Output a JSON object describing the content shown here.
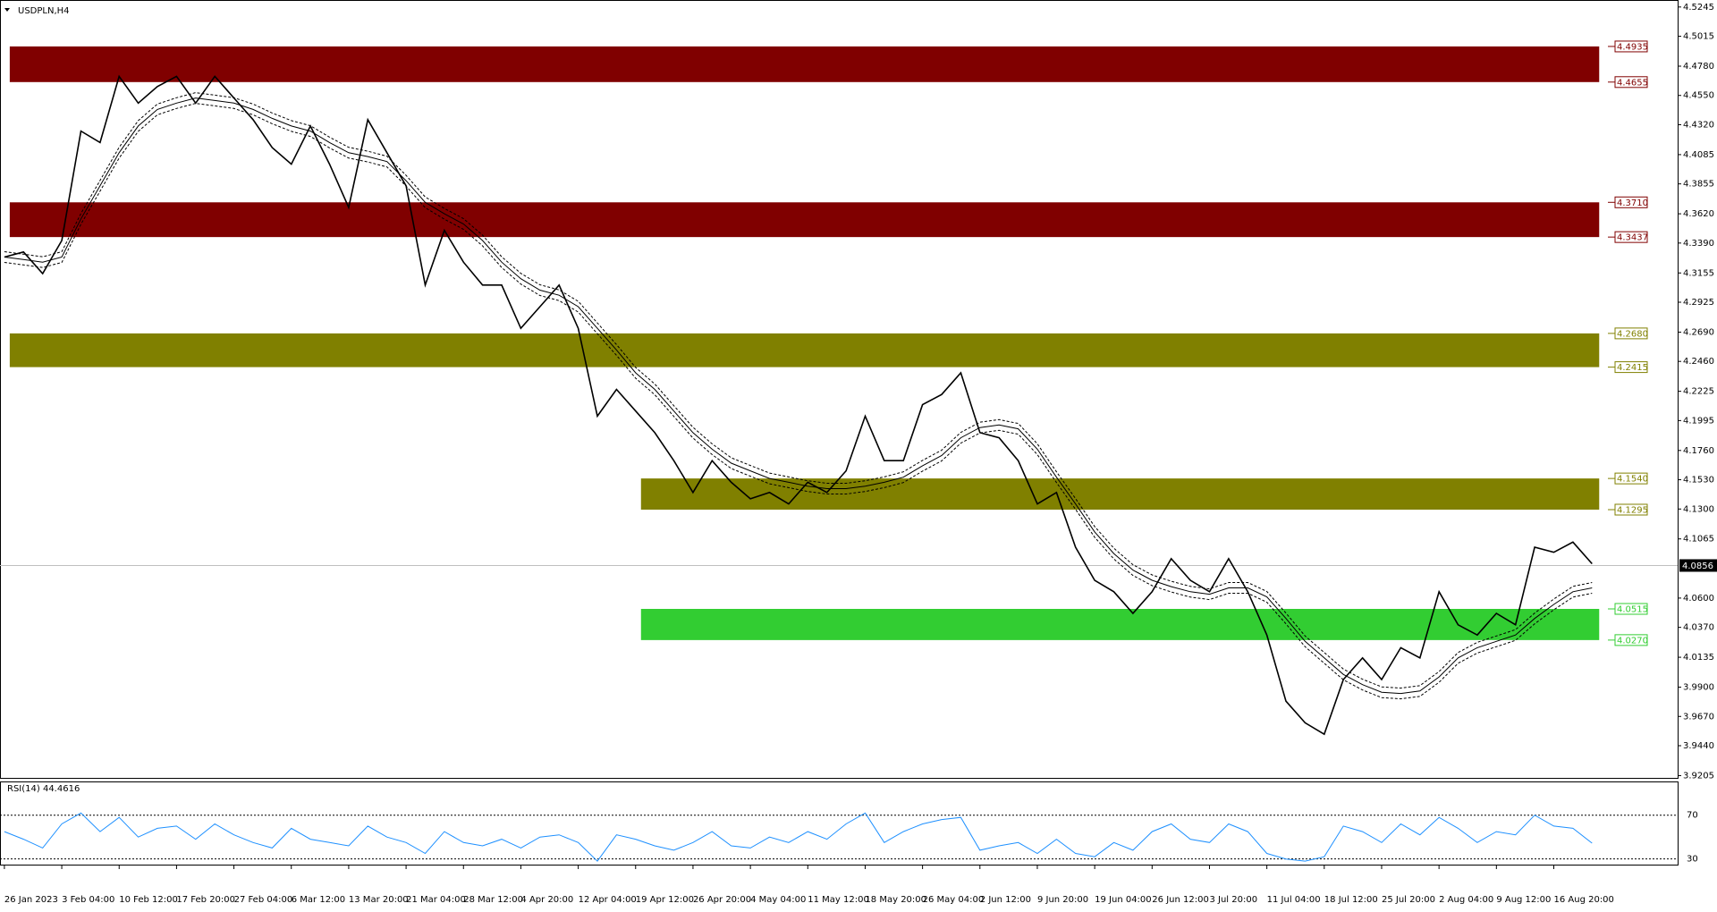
{
  "chart_data": {
    "type": "line",
    "title": "USDPLN,H4",
    "categories": [
      "26 Jan 2023",
      null,
      null,
      "3 Feb 04:00",
      null,
      null,
      "10 Feb 12:00",
      null,
      null,
      "17 Feb 20:00",
      null,
      null,
      "27 Feb 04:00",
      null,
      null,
      "6 Mar 12:00",
      null,
      null,
      "13 Mar 20:00",
      null,
      null,
      "21 Mar 04:00",
      null,
      null,
      "28 Mar 12:00",
      null,
      null,
      "4 Apr 20:00",
      null,
      null,
      "12 Apr 04:00",
      null,
      null,
      "19 Apr 12:00",
      null,
      null,
      "26 Apr 20:00",
      null,
      null,
      "4 May 04:00",
      null,
      null,
      "11 May 12:00",
      null,
      null,
      "18 May 20:00",
      null,
      null,
      "26 May 04:00",
      null,
      null,
      "2 Jun 12:00",
      null,
      null,
      "9 Jun 20:00",
      null,
      null,
      "19 Jun 04:00",
      null,
      null,
      "26 Jun 12:00",
      null,
      null,
      "3 Jul 20:00",
      null,
      null,
      "11 Jul 04:00",
      null,
      null,
      "18 Jul 12:00",
      null,
      null,
      "25 Jul 20:00",
      null,
      null,
      "2 Aug 04:00",
      null,
      null,
      "9 Aug 12:00",
      null,
      null,
      "16 Aug 20:00",
      null,
      null
    ],
    "series": [
      {
        "name": "USDPLN",
        "color": "#000000",
        "values": [
          4.328,
          4.332,
          4.315,
          4.341,
          4.427,
          4.418,
          4.47,
          4.449,
          4.462,
          4.47,
          4.449,
          4.47,
          4.453,
          4.436,
          4.414,
          4.401,
          4.431,
          4.401,
          4.367,
          4.436,
          4.41,
          4.384,
          4.306,
          4.349,
          4.324,
          4.306,
          4.306,
          4.272,
          4.289,
          4.306,
          4.272,
          4.203,
          4.224,
          4.207,
          4.19,
          4.168,
          4.143,
          4.168,
          4.151,
          4.138,
          4.143,
          4.134,
          4.151,
          4.143,
          4.16,
          4.203,
          4.168,
          4.168,
          4.212,
          4.22,
          4.237,
          4.19,
          4.186,
          4.168,
          4.134,
          4.143,
          4.1,
          4.074,
          4.065,
          4.048,
          4.065,
          4.091,
          4.074,
          4.065,
          4.091,
          4.065,
          4.031,
          3.979,
          3.962,
          3.953,
          3.996,
          4.013,
          3.996,
          4.021,
          4.013,
          4.065,
          4.039,
          4.031,
          4.048,
          4.039,
          4.1,
          4.096,
          4.104,
          4.087
        ]
      },
      {
        "name": "MA",
        "color": "#000000",
        "values": [
          4.328,
          4.326,
          4.324,
          4.328,
          4.358,
          4.384,
          4.41,
          4.431,
          4.444,
          4.449,
          4.453,
          4.451,
          4.449,
          4.444,
          4.437,
          4.431,
          4.427,
          4.418,
          4.41,
          4.407,
          4.403,
          4.388,
          4.371,
          4.362,
          4.354,
          4.341,
          4.324,
          4.311,
          4.302,
          4.298,
          4.289,
          4.272,
          4.255,
          4.237,
          4.224,
          4.207,
          4.19,
          4.177,
          4.166,
          4.16,
          4.154,
          4.151,
          4.148,
          4.146,
          4.146,
          4.148,
          4.151,
          4.155,
          4.164,
          4.172,
          4.186,
          4.194,
          4.196,
          4.193,
          4.177,
          4.155,
          4.134,
          4.112,
          4.095,
          4.082,
          4.074,
          4.069,
          4.065,
          4.063,
          4.068,
          4.068,
          4.061,
          4.044,
          4.026,
          4.013,
          4.0,
          3.992,
          3.986,
          3.985,
          3.987,
          3.998,
          4.013,
          4.021,
          4.026,
          4.031,
          4.044,
          4.055,
          4.065,
          4.068
        ]
      }
    ],
    "ylim": [
      3.918,
      4.53
    ],
    "yticks": [
      4.5245,
      4.5015,
      {
        "value": 4.478,
        "label": "4.4780"
      },
      {
        "value": 4.455,
        "label": "4.4550"
      },
      {
        "value": 4.432,
        "label": "4.4320"
      },
      4.4085,
      4.3855,
      {
        "value": 4.362,
        "label": "4.3620"
      },
      {
        "value": 4.339,
        "label": "4.3390"
      },
      4.3155,
      4.2925,
      {
        "value": 4.269,
        "label": "4.2690"
      },
      {
        "value": 4.246,
        "label": "4.2460"
      },
      4.2225,
      4.1995,
      {
        "value": 4.176,
        "label": "4.1760"
      },
      {
        "value": 4.153,
        "label": "4.1530"
      },
      {
        "value": 4.13,
        "label": "4.1300"
      },
      4.1065,
      {
        "value": 4.06,
        "label": "4.0600"
      },
      {
        "value": 4.037,
        "label": "4.0370"
      },
      4.0135,
      {
        "value": 3.99,
        "label": "3.9900"
      },
      {
        "value": 3.967,
        "label": "3.9670"
      },
      {
        "value": 3.944,
        "label": "3.9440"
      },
      3.9205
    ],
    "last_price": 4.0856,
    "zones": [
      {
        "color": "#800000",
        "start_index": 0,
        "values": [
          4.4935,
          4.4655
        ],
        "value_labels": [
          "4.4935",
          "4.4655"
        ]
      },
      {
        "color": "#800000",
        "start_index": 0,
        "values": [
          4.371,
          4.3437
        ],
        "value_labels": [
          "4.3710",
          "4.3437"
        ]
      },
      {
        "color": "#808000",
        "start_index": 0,
        "values": [
          4.268,
          4.2415
        ],
        "value_labels": [
          "4.2680",
          "4.2415"
        ]
      },
      {
        "color": "#808000",
        "start_index": 33,
        "values": [
          4.154,
          4.1295
        ],
        "value_labels": [
          "4.1540",
          "4.1295"
        ]
      },
      {
        "color": "#32cd32",
        "start_index": 33,
        "values": [
          4.0515,
          4.027
        ],
        "value_labels": [
          "4.0515",
          "4.0270"
        ]
      }
    ],
    "rsi": {
      "title": "RSI(14) 44.4616",
      "color": "#1e90ff",
      "ylim": [
        24,
        100
      ],
      "yticks": [
        70,
        30
      ],
      "values": [
        55,
        48,
        40,
        62,
        72,
        55,
        68,
        50,
        58,
        60,
        48,
        62,
        52,
        45,
        40,
        58,
        48,
        45,
        42,
        60,
        50,
        45,
        35,
        55,
        45,
        42,
        48,
        40,
        50,
        52,
        45,
        28,
        52,
        48,
        42,
        38,
        45,
        55,
        42,
        40,
        50,
        45,
        55,
        48,
        62,
        72,
        45,
        55,
        62,
        66,
        68,
        38,
        42,
        45,
        35,
        48,
        35,
        32,
        45,
        38,
        55,
        62,
        48,
        45,
        62,
        55,
        35,
        30,
        28,
        32,
        60,
        55,
        45,
        62,
        52,
        68,
        58,
        45,
        55,
        52,
        70,
        60,
        58,
        44.4616
      ]
    }
  }
}
